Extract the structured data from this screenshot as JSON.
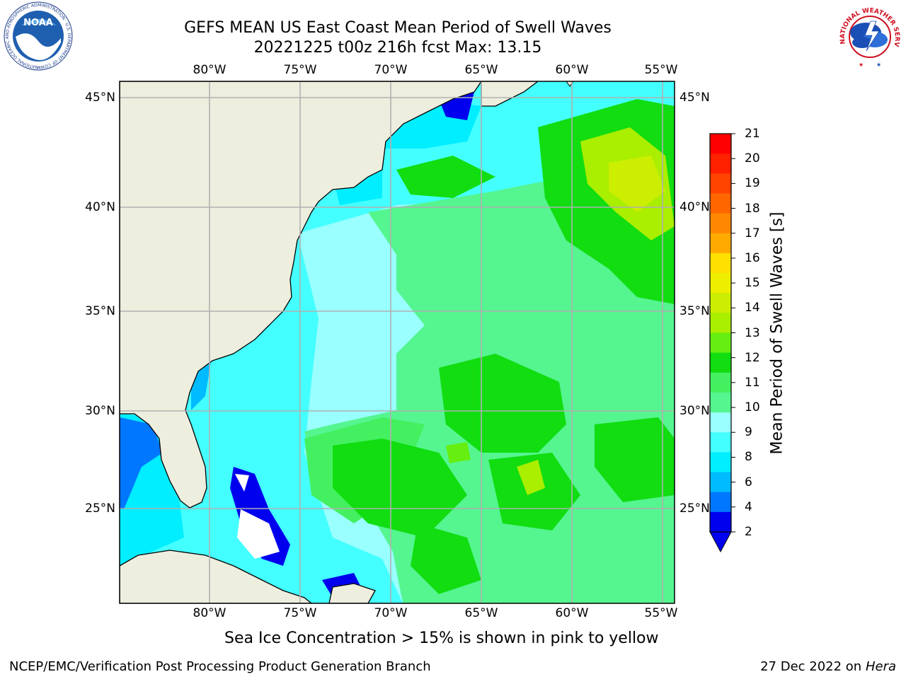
{
  "title": {
    "line1": "GEFS MEAN US East Coast Mean Period of Swell Waves",
    "line2": "20221225 t00z 216h fcst   Max: 13.15"
  },
  "map": {
    "lon_ticks_top": [
      "80°W",
      "75°W",
      "70°W",
      "65°W",
      "60°W",
      "55°W"
    ],
    "lon_ticks_bottom": [
      "80°W",
      "75°W",
      "70°W",
      "65°W",
      "60°W",
      "55°W"
    ],
    "lat_ticks_left": [
      "45°N",
      "40°N",
      "35°N",
      "30°N",
      "25°N"
    ],
    "lat_ticks_right": [
      "45°N",
      "40°N",
      "35°N",
      "30°N",
      "25°N"
    ],
    "land_color": "#eeeedf",
    "grid_color": "#b0b0b0"
  },
  "colorbar": {
    "label": "Mean Period of Swell Waves [s]",
    "ticks": [
      "21",
      "20",
      "19",
      "18",
      "17",
      "16",
      "15",
      "14",
      "13",
      "12",
      "11",
      "10",
      "9",
      "8",
      "6",
      "4",
      "2"
    ],
    "colors": [
      "#ff0000",
      "#ff2000",
      "#ff4400",
      "#ff6600",
      "#ff8800",
      "#ffaa00",
      "#ffe000",
      "#eeee00",
      "#ccee00",
      "#aaee00",
      "#66ee11",
      "#11dd11",
      "#44f060",
      "#55f590",
      "#99ffff",
      "#44ffff",
      "#00eeff",
      "#00bbff",
      "#0077ff",
      "#0000ee"
    ]
  },
  "note": "Sea Ice Concentration > 15% is shown in pink to yellow",
  "footer": {
    "left": "NCEP/EMC/Verification Post Processing Product Generation Branch",
    "date": "27 Dec 2022 on",
    "host": "Hera"
  },
  "logos": {
    "noaa_text": "NOAA",
    "noaa_ring": "NATIONAL OCEANIC AND ATMOSPHERIC ADMINISTRATION · U.S. DEPARTMENT OF COMMERCE",
    "nws_ring": "NATIONAL WEATHER SERVICE"
  }
}
